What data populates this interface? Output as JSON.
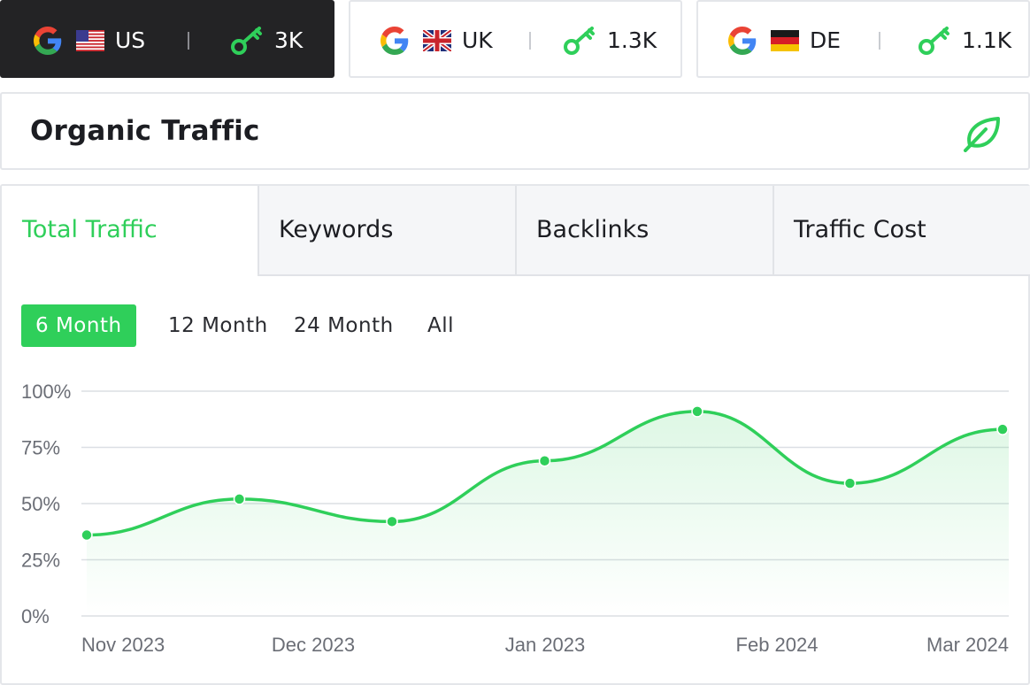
{
  "countries": [
    {
      "code": "US",
      "keywords": "3K",
      "active": true
    },
    {
      "code": "UK",
      "keywords": "1.3K",
      "active": false
    },
    {
      "code": "DE",
      "keywords": "1.1K",
      "active": false
    }
  ],
  "icons": {
    "search_engine": "google-icon",
    "keywords": "key-icon",
    "header": "leaf-icon"
  },
  "header": {
    "title": "Organic Traffic"
  },
  "tabs": [
    {
      "label": "Total Traffic",
      "active": true
    },
    {
      "label": "Keywords",
      "active": false
    },
    {
      "label": "Backlinks",
      "active": false
    },
    {
      "label": "Traffic Cost",
      "active": false
    }
  ],
  "ranges": [
    {
      "label": "6 Month",
      "active": true
    },
    {
      "label": "12 Month",
      "active": false
    },
    {
      "label": "24 Month",
      "active": false
    },
    {
      "label": "All",
      "active": false
    }
  ],
  "colors": {
    "accent": "#2fcf5a",
    "dark": "#232325"
  },
  "chart_data": {
    "type": "area",
    "x_labels": [
      "Nov 2023",
      "Dec 2023",
      "Jan 2023",
      "Feb 2024",
      "Mar 2024"
    ],
    "yticks": [
      "0%",
      "25%",
      "50%",
      "75%",
      "100%"
    ],
    "ylim": [
      0,
      100
    ],
    "values": [
      36,
      52,
      42,
      69,
      91,
      59,
      83
    ],
    "grid": true,
    "legend": "none"
  }
}
